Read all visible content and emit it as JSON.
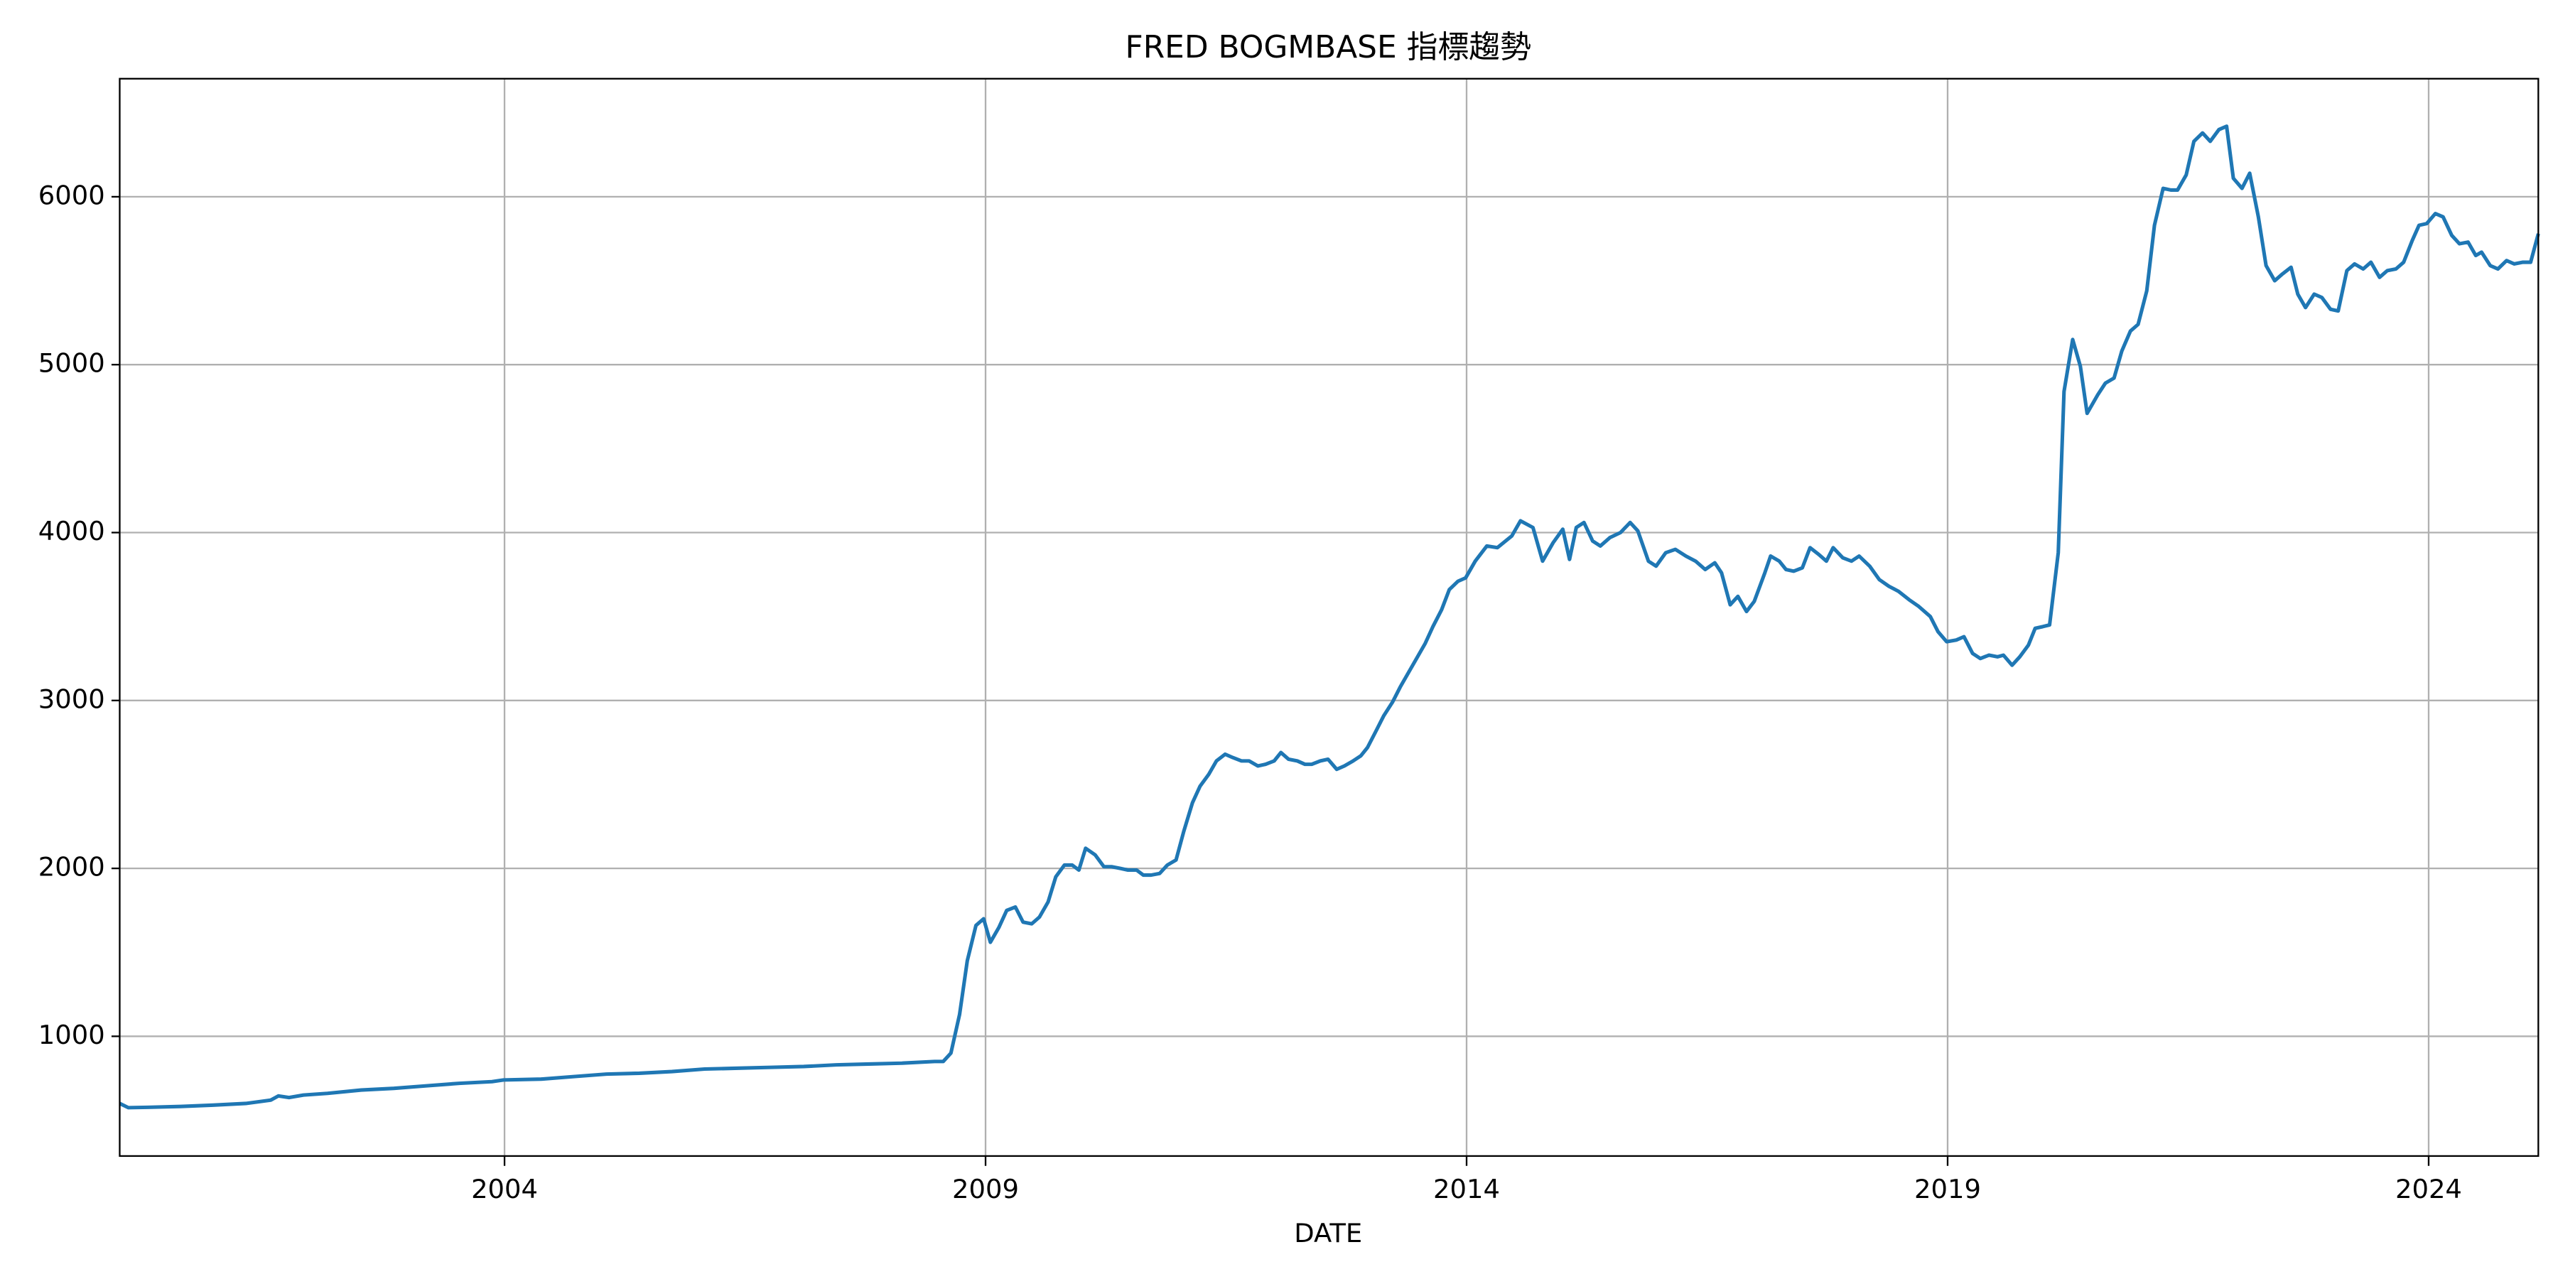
{
  "chart_data": {
    "type": "line",
    "title": "FRED BOGMBASE 指標趨勢",
    "x_label": "DATE",
    "x": [
      2000,
      2000.09,
      2000.29,
      2000.63,
      2000.97,
      2001.31,
      2001.57,
      2001.65,
      2001.76,
      2001.91,
      2002.16,
      2002.51,
      2002.85,
      2003.19,
      2003.53,
      2003.87,
      2003.99,
      2004.38,
      2004.72,
      2005.06,
      2005.4,
      2005.74,
      2006.08,
      2006.43,
      2006.77,
      2007.11,
      2007.45,
      2007.79,
      2008.13,
      2008.47,
      2008.56,
      2008.64,
      2008.73,
      2008.81,
      2008.9,
      2008.98,
      2009.05,
      2009.14,
      2009.22,
      2009.31,
      2009.39,
      2009.48,
      2009.56,
      2009.65,
      2009.73,
      2009.82,
      2009.9,
      2009.97,
      2010.04,
      2010.14,
      2010.23,
      2010.31,
      2010.4,
      2010.48,
      2010.57,
      2010.64,
      2010.72,
      2010.81,
      2010.89,
      2010.98,
      2011.06,
      2011.15,
      2011.23,
      2011.32,
      2011.4,
      2011.49,
      2011.57,
      2011.66,
      2011.74,
      2011.83,
      2011.91,
      2012,
      2012.07,
      2012.15,
      2012.24,
      2012.32,
      2012.39,
      2012.48,
      2012.56,
      2012.65,
      2012.73,
      2012.82,
      2012.9,
      2012.97,
      2013.06,
      2013.14,
      2013.23,
      2013.31,
      2013.4,
      2013.48,
      2013.57,
      2013.65,
      2013.74,
      2013.82,
      2013.91,
      2013.99,
      2014.09,
      2014.21,
      2014.32,
      2014.47,
      2014.56,
      2014.69,
      2014.79,
      2014.9,
      2015,
      2015.07,
      2015.14,
      2015.22,
      2015.31,
      2015.39,
      2015.49,
      2015.6,
      2015.7,
      2015.78,
      2015.89,
      2015.97,
      2016.07,
      2016.17,
      2016.28,
      2016.38,
      2016.48,
      2016.58,
      2016.65,
      2016.74,
      2016.82,
      2016.91,
      2016.99,
      2017.1,
      2017.16,
      2017.25,
      2017.32,
      2017.4,
      2017.49,
      2017.57,
      2017.66,
      2017.74,
      2017.81,
      2017.91,
      2018,
      2018.08,
      2018.19,
      2018.29,
      2018.39,
      2018.49,
      2018.6,
      2018.7,
      2018.82,
      2018.9,
      2018.99,
      2019.09,
      2019.17,
      2019.26,
      2019.34,
      2019.43,
      2019.52,
      2019.58,
      2019.67,
      2019.75,
      2019.84,
      2019.91,
      2019.99,
      2020.06,
      2020.15,
      2020.21,
      2020.3,
      2020.38,
      2020.45,
      2020.56,
      2020.64,
      2020.73,
      2020.81,
      2020.9,
      2020.98,
      2021.07,
      2021.15,
      2021.24,
      2021.32,
      2021.39,
      2021.48,
      2021.56,
      2021.65,
      2021.73,
      2021.82,
      2021.9,
      2021.97,
      2022.06,
      2022.14,
      2022.23,
      2022.31,
      2022.4,
      2022.48,
      2022.57,
      2022.64,
      2022.72,
      2022.81,
      2022.89,
      2022.98,
      2023.06,
      2023.15,
      2023.23,
      2023.32,
      2023.4,
      2023.49,
      2023.57,
      2023.66,
      2023.74,
      2023.83,
      2023.9,
      2023.98,
      2024.07,
      2024.15,
      2024.24,
      2024.32,
      2024.41,
      2024.49,
      2024.55,
      2024.64,
      2024.72,
      2024.81,
      2024.89,
      2024.98,
      2025.06,
      2025.14
    ],
    "values": [
      600,
      575,
      577,
      582,
      590,
      600,
      620,
      645,
      635,
      650,
      660,
      680,
      690,
      705,
      720,
      730,
      740,
      745,
      760,
      775,
      780,
      790,
      805,
      810,
      815,
      820,
      830,
      835,
      840,
      850,
      850,
      900,
      1130,
      1450,
      1660,
      1700,
      1560,
      1650,
      1750,
      1770,
      1680,
      1670,
      1710,
      1800,
      1950,
      2020,
      2020,
      1990,
      2120,
      2080,
      2010,
      2010,
      2000,
      1990,
      1990,
      1960,
      1960,
      1970,
      2020,
      2050,
      2220,
      2390,
      2490,
      2560,
      2640,
      2680,
      2660,
      2640,
      2640,
      2610,
      2620,
      2640,
      2690,
      2650,
      2640,
      2620,
      2620,
      2640,
      2650,
      2590,
      2610,
      2640,
      2670,
      2720,
      2820,
      2910,
      2990,
      3080,
      3170,
      3250,
      3340,
      3440,
      3540,
      3660,
      3710,
      3730,
      3830,
      3920,
      3910,
      3980,
      4070,
      4030,
      3830,
      3940,
      4020,
      3840,
      4030,
      4060,
      3950,
      3920,
      3970,
      4000,
      4060,
      4010,
      3830,
      3800,
      3880,
      3900,
      3860,
      3830,
      3780,
      3820,
      3760,
      3570,
      3620,
      3530,
      3590,
      3760,
      3860,
      3830,
      3780,
      3770,
      3790,
      3910,
      3870,
      3830,
      3910,
      3850,
      3830,
      3860,
      3800,
      3720,
      3680,
      3650,
      3600,
      3560,
      3500,
      3410,
      3350,
      3360,
      3380,
      3280,
      3250,
      3270,
      3260,
      3270,
      3210,
      3260,
      3330,
      3430,
      3440,
      3450,
      3880,
      4840,
      5150,
      4990,
      4710,
      4820,
      4890,
      4920,
      5080,
      5200,
      5240,
      5440,
      5830,
      6050,
      6040,
      6040,
      6130,
      6330,
      6380,
      6330,
      6400,
      6420,
      6110,
      6050,
      6140,
      5880,
      5590,
      5500,
      5540,
      5580,
      5420,
      5340,
      5420,
      5400,
      5330,
      5320,
      5560,
      5600,
      5570,
      5610,
      5520,
      5560,
      5570,
      5610,
      5740,
      5830,
      5840,
      5900,
      5880,
      5770,
      5720,
      5730,
      5650,
      5670,
      5590,
      5570,
      5620,
      5600,
      5610,
      5610,
      5780
    ],
    "color": "#1f77b4",
    "xlim": [
      2000,
      2025.14
    ],
    "xticks": [
      2004,
      2009,
      2014,
      2019,
      2024
    ],
    "ylim": [
      287,
      6703
    ],
    "yticks": [
      1000,
      2000,
      3000,
      4000,
      5000,
      6000
    ],
    "grid": true
  }
}
